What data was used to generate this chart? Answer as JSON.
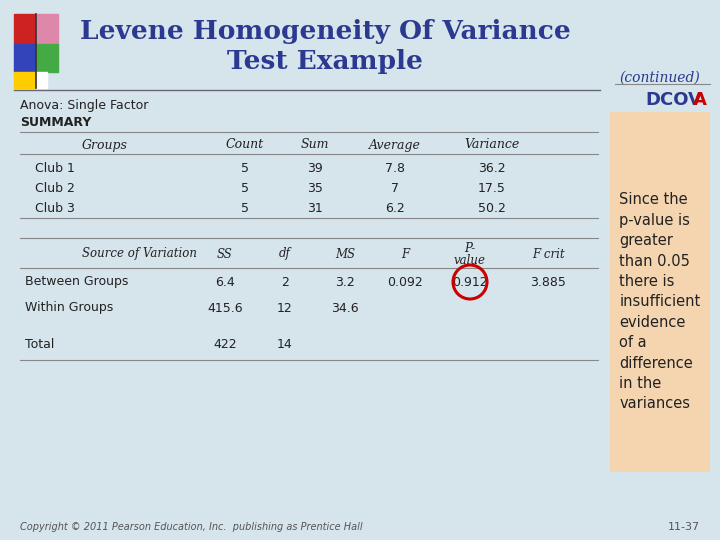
{
  "title_line1": "Levene Homogeneity Of Variance",
  "title_line2": "Test Example",
  "title_color": "#2B3990",
  "continued_text": "(continued)",
  "dcov_text": "DCOV",
  "dcov_a": "A",
  "dcov_a_color": "#CC0000",
  "subtitle": "Anova: Single Factor",
  "summary_label": "SUMMARY",
  "table1_headers": [
    "Groups",
    "Count",
    "Sum",
    "Average",
    "Variance"
  ],
  "table1_rows": [
    [
      "Club 1",
      "5",
      "39",
      "7.8",
      "36.2"
    ],
    [
      "Club 2",
      "5",
      "35",
      "7",
      "17.5"
    ],
    [
      "Club 3",
      "5",
      "31",
      "6.2",
      "50.2"
    ]
  ],
  "table2_header_labels": [
    "Source of Variation",
    "SS",
    "df",
    "MS",
    "F",
    "P-",
    "value",
    "F crit"
  ],
  "table2_rows": [
    [
      "Between Groups",
      "6.4",
      "2",
      "3.2",
      "0.092",
      "0.912",
      "3.885"
    ],
    [
      "Within Groups",
      "415.6",
      "12",
      "34.6",
      "",
      "",
      ""
    ],
    [
      "Total",
      "422",
      "14",
      "",
      "",
      "",
      ""
    ]
  ],
  "note_text": "Since the\np-value is\ngreater\nthan 0.05\nthere is\ninsufficient\nevidence\nof a\ndifference\nin the\nvariances",
  "note_bg_color": "#F5D5B0",
  "bg_color": "#D6E4EC",
  "circle_color": "#CC0000",
  "footer_text": "Copyright © 2011 Pearson Education, Inc.  publishing as Prentice Hall",
  "slide_number": "11-37",
  "logo_rects": [
    [
      14,
      14,
      22,
      30,
      "#CC2222"
    ],
    [
      36,
      14,
      22,
      30,
      "#DD88AA"
    ],
    [
      14,
      44,
      22,
      28,
      "#3344BB"
    ],
    [
      36,
      44,
      22,
      28,
      "#44AA44"
    ],
    [
      14,
      72,
      22,
      16,
      "#FFCC00"
    ],
    [
      36,
      72,
      11,
      16,
      "#FFFFFF"
    ]
  ],
  "line_color": "#888888",
  "text_color": "#222222"
}
